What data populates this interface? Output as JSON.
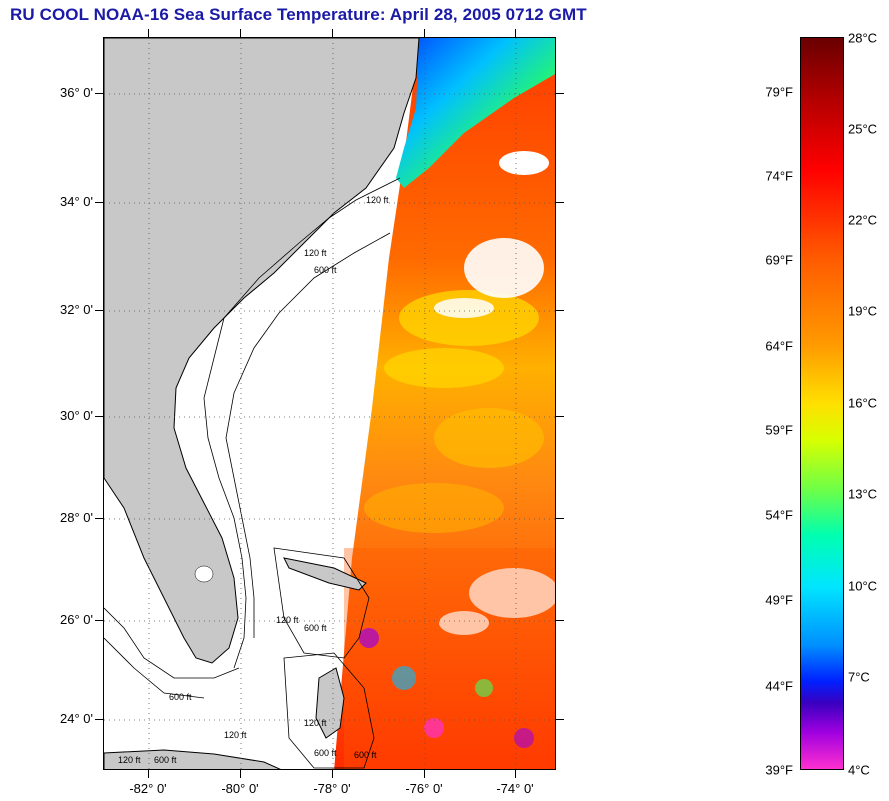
{
  "title": "RU COOL  NOAA-16  Sea Surface Temperature:  April 28, 2005 0712 GMT",
  "map": {
    "lat_labels": [
      "36° 0'",
      "34° 0'",
      "32° 0'",
      "30° 0'",
      "28° 0'",
      "26° 0'",
      "24° 0'"
    ],
    "lon_labels": [
      "-82° 0'",
      "-80° 0'",
      "-78° 0'",
      "-76° 0'",
      "-74° 0'"
    ],
    "isobath_labels": [
      "120 ft",
      "120 ft",
      "600 ft",
      "120 ft",
      "600 ft",
      "120 ft",
      "600 ft",
      "120 ft",
      "600 ft",
      "120 ft",
      "600 ft",
      "600 ft"
    ],
    "colors": {
      "land": "#c8c8c8",
      "ocean_no_data": "#ffffff",
      "coast": "#000000"
    }
  },
  "colorbar": {
    "celsius_labels": [
      "28°C",
      "25°C",
      "22°C",
      "19°C",
      "16°C",
      "13°C",
      "10°C",
      "7°C",
      "4°C"
    ],
    "fahrenheit_labels": [
      "79°F",
      "74°F",
      "69°F",
      "64°F",
      "59°F",
      "54°F",
      "49°F",
      "44°F",
      "39°F"
    ]
  }
}
